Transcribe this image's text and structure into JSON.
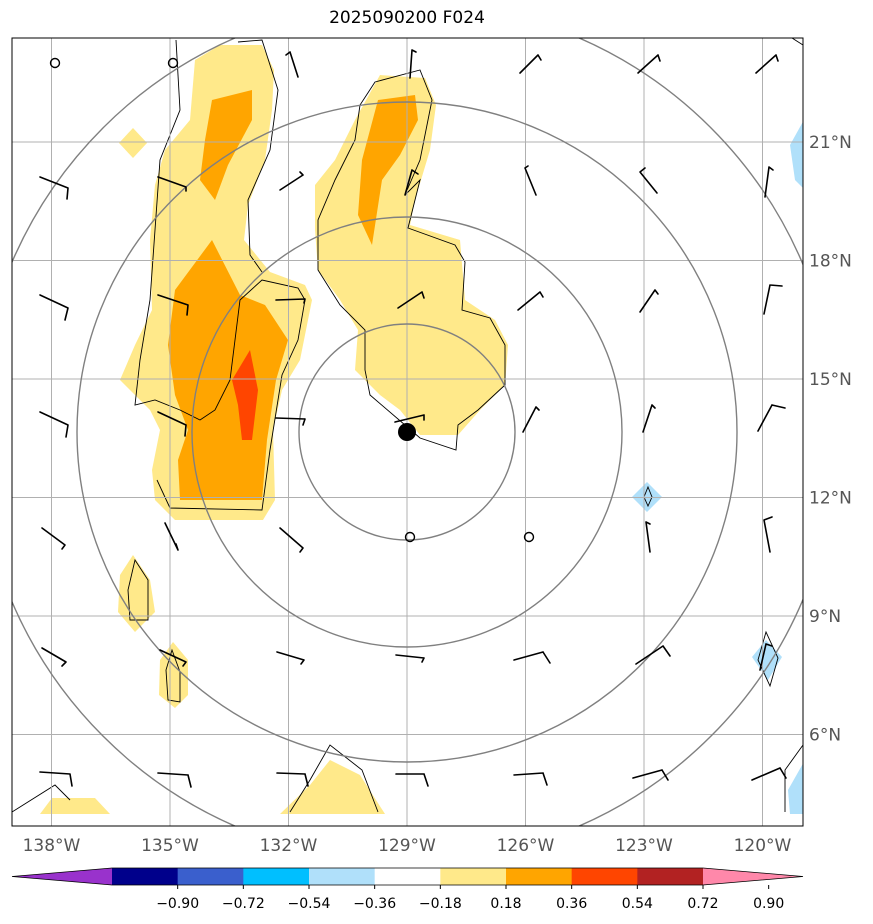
{
  "title": "2025090200 F024",
  "map": {
    "lon_range": [
      -139,
      -119.7
    ],
    "lat_range": [
      4,
      24.5
    ],
    "lon_ticks": [
      -138,
      -135,
      -132,
      -129,
      -126,
      -123,
      -120
    ],
    "lon_tick_labels": [
      "138°W",
      "135°W",
      "132°W",
      "129°W",
      "126°W",
      "123°W",
      "120°W"
    ],
    "lat_ticks": [
      6,
      9,
      12,
      15,
      18,
      21
    ],
    "lat_tick_labels": [
      "6°N",
      "9°N",
      "12°N",
      "15°N",
      "18°N",
      "21°N"
    ],
    "grid": true,
    "center": {
      "lon": -129.0,
      "lat": 13.6
    }
  },
  "colorbar": {
    "tick_labels": [
      "−0.90",
      "−0.72",
      "−0.54",
      "−0.36",
      "−0.18",
      "0.18",
      "0.36",
      "0.54",
      "0.72",
      "0.90"
    ],
    "colors": [
      "#9932cc",
      "#00008b",
      "#3a5fcd",
      "#00bfff",
      "#b0e0fa",
      "#ffffff",
      "#ffe98a",
      "#ffa500",
      "#ff4500",
      "#b22222",
      "#ff88aa"
    ]
  },
  "colors": {
    "light_yellow": "#ffe98a",
    "orange": "#ffa500",
    "red_orange": "#ff4500",
    "light_blue": "#b0e0fa",
    "range_ring": "#808080",
    "grid": "#b0b0b0"
  }
}
